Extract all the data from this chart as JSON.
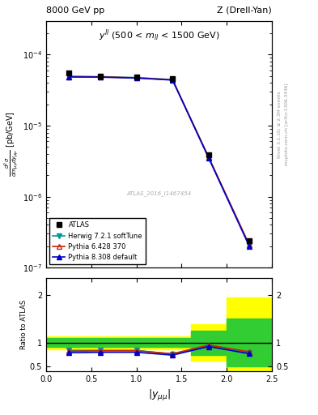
{
  "title_left": "8000 GeV pp",
  "title_right": "Z (Drell-Yan)",
  "annotation": "$y^{ll}$ (500 < $m_{ll}$ < 1500 GeV)",
  "watermark": "ATLAS_2016_I1467454",
  "right_label1": "Rivet 3.1.10; ≥ 2.3M events",
  "right_label2": "mcplots.cern.ch [arXiv:1306.3436]",
  "x_centers": [
    0.25,
    0.6,
    1.0,
    1.4,
    1.8,
    2.25
  ],
  "x_edges": [
    0.0,
    0.5,
    0.75,
    1.25,
    1.6,
    2.0,
    2.5
  ],
  "atlas_y": [
    5.5e-05,
    5e-05,
    4.9e-05,
    4.55e-05,
    3.9e-06,
    2.4e-07
  ],
  "herwig_y": [
    4.95e-05,
    4.9e-05,
    4.75e-05,
    4.45e-05,
    3.55e-06,
    2.05e-07
  ],
  "pythia6_y": [
    4.9e-05,
    4.85e-05,
    4.72e-05,
    4.42e-05,
    3.6e-06,
    2.1e-07
  ],
  "pythia8_y": [
    4.85e-05,
    4.82e-05,
    4.68e-05,
    4.38e-05,
    3.5e-06,
    2e-07
  ],
  "herwig_ratio": [
    0.84,
    0.84,
    0.84,
    0.76,
    0.93,
    0.79
  ],
  "pythia6_ratio": [
    0.82,
    0.83,
    0.83,
    0.77,
    0.95,
    0.81
  ],
  "pythia8_ratio": [
    0.79,
    0.8,
    0.8,
    0.74,
    0.92,
    0.77
  ],
  "band_yellow_lo": [
    0.86,
    0.86,
    0.86,
    0.86,
    0.62,
    0.35
  ],
  "band_yellow_hi": [
    1.14,
    1.14,
    1.14,
    1.14,
    1.38,
    1.95
  ],
  "band_green_lo": [
    0.91,
    0.91,
    0.91,
    0.91,
    0.75,
    0.5
  ],
  "band_green_hi": [
    1.09,
    1.09,
    1.09,
    1.09,
    1.25,
    1.5
  ],
  "color_herwig": "#009999",
  "color_pythia6": "#CC2200",
  "color_pythia8": "#0000CC",
  "color_atlas": "black",
  "ylim_main_lo": 1e-07,
  "ylim_main_hi": 0.0003,
  "ylim_ratio_lo": 0.4,
  "ylim_ratio_hi": 2.35,
  "xlim_lo": 0.0,
  "xlim_hi": 2.5
}
